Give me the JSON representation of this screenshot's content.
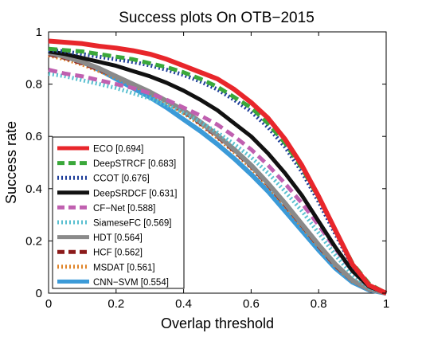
{
  "chart_data": {
    "type": "line",
    "title": "Success plots On OTB−2015",
    "xlabel": "Overlap threshold",
    "ylabel": "Success rate",
    "xlim": [
      0,
      1
    ],
    "ylim": [
      0,
      1
    ],
    "xticks": [
      "0",
      "0.2",
      "0.4",
      "0.6",
      "0.8",
      "1"
    ],
    "yticks": [
      "0",
      "0.2",
      "0.4",
      "0.6",
      "0.8",
      "1"
    ],
    "grid": false,
    "legend_position": "bottom-left",
    "x": [
      0,
      0.05,
      0.1,
      0.15,
      0.2,
      0.25,
      0.3,
      0.35,
      0.4,
      0.45,
      0.5,
      0.55,
      0.6,
      0.65,
      0.7,
      0.75,
      0.8,
      0.85,
      0.9,
      0.95,
      1.0
    ],
    "series": [
      {
        "name": "ECO [0.694]",
        "color": "#e8262b",
        "style": "solid",
        "values": [
          0.965,
          0.96,
          0.955,
          0.945,
          0.938,
          0.928,
          0.915,
          0.895,
          0.87,
          0.845,
          0.82,
          0.78,
          0.73,
          0.67,
          0.59,
          0.49,
          0.37,
          0.24,
          0.11,
          0.03,
          0.0
        ]
      },
      {
        "name": "DeepSTRCF [0.683]",
        "color": "#3aa83a",
        "style": "dashed",
        "values": [
          0.935,
          0.93,
          0.925,
          0.915,
          0.905,
          0.895,
          0.88,
          0.865,
          0.845,
          0.82,
          0.79,
          0.75,
          0.71,
          0.65,
          0.575,
          0.48,
          0.365,
          0.24,
          0.115,
          0.035,
          0.0
        ]
      },
      {
        "name": "CCOT [0.676]",
        "color": "#1f3f9a",
        "style": "dotted",
        "values": [
          0.93,
          0.925,
          0.915,
          0.905,
          0.895,
          0.885,
          0.872,
          0.855,
          0.835,
          0.81,
          0.78,
          0.74,
          0.695,
          0.635,
          0.56,
          0.465,
          0.35,
          0.225,
          0.105,
          0.03,
          0.0
        ]
      },
      {
        "name": "DeepSRDCF [0.631]",
        "color": "#111111",
        "style": "solid",
        "values": [
          0.925,
          0.915,
          0.9,
          0.885,
          0.87,
          0.85,
          0.83,
          0.805,
          0.775,
          0.74,
          0.7,
          0.65,
          0.6,
          0.535,
          0.46,
          0.375,
          0.275,
          0.175,
          0.085,
          0.025,
          0.0
        ]
      },
      {
        "name": "CF−Net [0.588]",
        "color": "#c060b0",
        "style": "dashed",
        "values": [
          0.855,
          0.84,
          0.83,
          0.815,
          0.8,
          0.785,
          0.765,
          0.74,
          0.71,
          0.68,
          0.645,
          0.6,
          0.55,
          0.49,
          0.42,
          0.345,
          0.26,
          0.17,
          0.085,
          0.025,
          0.0
        ]
      },
      {
        "name": "SiameseFC [0.569]",
        "color": "#5ac0d0",
        "style": "dotted",
        "values": [
          0.84,
          0.83,
          0.815,
          0.8,
          0.785,
          0.765,
          0.745,
          0.72,
          0.69,
          0.655,
          0.615,
          0.57,
          0.52,
          0.46,
          0.39,
          0.315,
          0.23,
          0.145,
          0.07,
          0.02,
          0.0
        ]
      },
      {
        "name": "HDT [0.564]",
        "color": "#8a8a8a",
        "style": "solid",
        "values": [
          0.92,
          0.905,
          0.885,
          0.86,
          0.83,
          0.8,
          0.77,
          0.735,
          0.7,
          0.655,
          0.605,
          0.55,
          0.49,
          0.42,
          0.345,
          0.265,
          0.185,
          0.11,
          0.05,
          0.015,
          0.0
        ]
      },
      {
        "name": "HCF [0.562]",
        "color": "#8b1a1a",
        "style": "dashed",
        "values": [
          0.915,
          0.9,
          0.88,
          0.855,
          0.83,
          0.8,
          0.77,
          0.735,
          0.695,
          0.65,
          0.6,
          0.545,
          0.485,
          0.415,
          0.34,
          0.26,
          0.18,
          0.105,
          0.048,
          0.013,
          0.0
        ]
      },
      {
        "name": "MSDAT [0.561]",
        "color": "#e0852a",
        "style": "dotted",
        "values": [
          0.91,
          0.895,
          0.875,
          0.85,
          0.825,
          0.795,
          0.765,
          0.73,
          0.69,
          0.645,
          0.595,
          0.54,
          0.48,
          0.41,
          0.335,
          0.255,
          0.178,
          0.103,
          0.047,
          0.013,
          0.0
        ]
      },
      {
        "name": "CNN−SVM [0.554]",
        "color": "#3b9ad8",
        "style": "solid",
        "values": [
          0.93,
          0.91,
          0.885,
          0.855,
          0.82,
          0.785,
          0.75,
          0.71,
          0.665,
          0.62,
          0.57,
          0.515,
          0.455,
          0.39,
          0.315,
          0.24,
          0.165,
          0.095,
          0.042,
          0.012,
          0.0
        ]
      }
    ]
  }
}
